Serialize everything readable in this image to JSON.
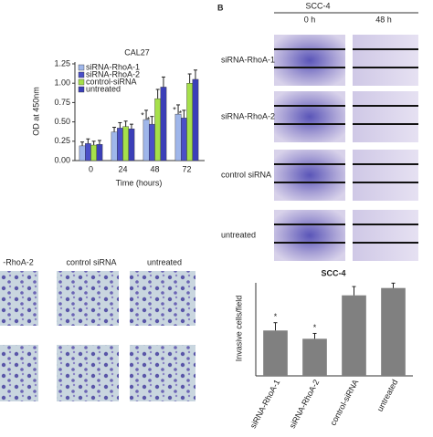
{
  "chart_data": [
    {
      "type": "bar",
      "title": "CAL27",
      "x_label": "Time (hours)",
      "y_label": "OD at 450nm",
      "categories": [
        "0",
        "24",
        "48",
        "72"
      ],
      "series": [
        {
          "name": "siRNA-RhoA-1",
          "color": "#9fb6ea",
          "values": [
            0.19,
            0.37,
            0.53,
            0.6
          ],
          "errors": [
            0.05,
            0.06,
            0.12,
            0.12
          ]
        },
        {
          "name": "siRNA-RhoA-2",
          "color": "#4a4fc8",
          "values": [
            0.22,
            0.42,
            0.47,
            0.55
          ],
          "errors": [
            0.06,
            0.07,
            0.1,
            0.1
          ]
        },
        {
          "name": "control-siRNA",
          "color": "#a6e04a",
          "values": [
            0.2,
            0.44,
            0.8,
            1.0
          ],
          "errors": [
            0.05,
            0.07,
            0.12,
            0.12
          ]
        },
        {
          "name": "untreated",
          "color": "#3b3fb8",
          "values": [
            0.21,
            0.41,
            0.95,
            1.05
          ],
          "errors": [
            0.05,
            0.06,
            0.13,
            0.12
          ]
        }
      ],
      "significance_marks": [
        "*",
        "*",
        "*",
        "*"
      ],
      "ylim": [
        0,
        1.25
      ],
      "yticks": [
        {
          "value": 0,
          "label": "0.00"
        },
        {
          "value": 0.25,
          "label": "0.25"
        },
        {
          "value": 0.5,
          "label": "0.50"
        },
        {
          "value": 0.75,
          "label": "0.75"
        },
        {
          "value": 1,
          "label": "1.00"
        },
        {
          "value": 1.25,
          "label": "1.25"
        }
      ]
    },
    {
      "type": "bar",
      "title": "SCC-4",
      "y_label": "Invasive cells/field",
      "categories": [
        "siRNA-RhoA-1",
        "siRNA-RhoA-2",
        "control-siRNA",
        "untreated"
      ],
      "values": [
        93,
        76,
        165,
        180
      ],
      "errors": [
        16,
        11,
        18,
        10
      ],
      "color": "#808080",
      "significance_marks": [
        "*",
        "*"
      ],
      "ylim": [
        0,
        200
      ]
    }
  ],
  "panel_b": {
    "label": "B",
    "title": "SCC-4",
    "columns": [
      "0 h",
      "48 h"
    ],
    "rows": [
      "siRNA-RhoA-1",
      "siRNA-RhoA-2",
      "control siRNA",
      "untreated"
    ]
  },
  "micrographs": {
    "columns": [
      "-RhoA-2",
      "control siRNA",
      "untreated"
    ]
  }
}
